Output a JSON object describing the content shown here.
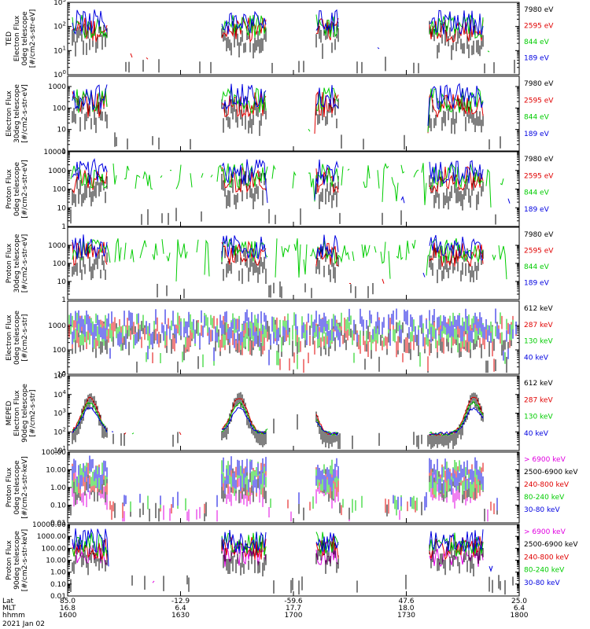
{
  "chart_data": [
    {
      "type": "line",
      "ylabel": [
        "TED",
        "Electron Flux",
        "0deg telescope",
        "[#/cm2-s-str-eV]"
      ],
      "y_scale": "log",
      "ylim": [
        1,
        1000
      ],
      "yticks": [
        "10^0",
        "10^1",
        "10^2",
        "10^3"
      ],
      "legend": [
        {
          "label": "7980 eV",
          "color": "#000000"
        },
        {
          "label": "2595 eV",
          "color": "#e00000"
        },
        {
          "label": "844 eV",
          "color": "#00cc00"
        },
        {
          "label": "189 eV",
          "color": "#0000e0"
        }
      ]
    },
    {
      "type": "line",
      "ylabel": [
        "Electron Flux",
        "30deg telescope",
        "[#/cm2-s-str-eV]"
      ],
      "y_scale": "log",
      "ylim": [
        1,
        3000
      ],
      "yticks": [
        "1",
        "10",
        "100",
        "1000"
      ],
      "legend": [
        {
          "label": "7980 eV",
          "color": "#000000"
        },
        {
          "label": "2595 eV",
          "color": "#e00000"
        },
        {
          "label": "844 eV",
          "color": "#00cc00"
        },
        {
          "label": "189 eV",
          "color": "#0000e0"
        }
      ]
    },
    {
      "type": "line",
      "ylabel": [
        "Proton Flux",
        "0deg telescope",
        "[#/cm2-s-str-eV]"
      ],
      "y_scale": "log",
      "ylim": [
        1,
        10000
      ],
      "yticks": [
        "1",
        "10",
        "100",
        "1000",
        "10000"
      ],
      "legend": [
        {
          "label": "7980 eV",
          "color": "#000000"
        },
        {
          "label": "2595 eV",
          "color": "#e00000"
        },
        {
          "label": "844 eV",
          "color": "#00cc00"
        },
        {
          "label": "189 eV",
          "color": "#0000e0"
        }
      ]
    },
    {
      "type": "line",
      "ylabel": [
        "Proton Flux",
        "30deg telescope",
        "[#/cm2-s-str-eV]"
      ],
      "y_scale": "log",
      "ylim": [
        1,
        10000
      ],
      "yticks": [
        "1",
        "10",
        "100",
        "1000"
      ],
      "legend": [
        {
          "label": "7980 eV",
          "color": "#000000"
        },
        {
          "label": "2595 eV",
          "color": "#e00000"
        },
        {
          "label": "844 eV",
          "color": "#00cc00"
        },
        {
          "label": "189 eV",
          "color": "#0000e0"
        }
      ]
    },
    {
      "type": "line",
      "ylabel": [
        "Electron Flux",
        "0deg telescope",
        "[#/cm2-s-str]"
      ],
      "y_scale": "log",
      "ylim": [
        10,
        10000
      ],
      "yticks": [
        "10",
        "100",
        "1000"
      ],
      "legend": [
        {
          "label": "612 keV",
          "color": "#000000"
        },
        {
          "label": "287 keV",
          "color": "#e00000"
        },
        {
          "label": "130 keV",
          "color": "#00cc00"
        },
        {
          "label": "40 keV",
          "color": "#0000e0"
        }
      ]
    },
    {
      "type": "line",
      "ylabel": [
        "MEPED",
        "Electron Flux",
        "90deg telescope",
        "[#/cm2-s-str]"
      ],
      "y_scale": "log",
      "ylim": [
        10,
        100000
      ],
      "yticks": [
        "10^1",
        "10^2",
        "10^3",
        "10^4",
        "10^5"
      ],
      "legend": [
        {
          "label": "612 keV",
          "color": "#000000"
        },
        {
          "label": "287 keV",
          "color": "#e00000"
        },
        {
          "label": "130 keV",
          "color": "#00cc00"
        },
        {
          "label": "40 keV",
          "color": "#0000e0"
        }
      ]
    },
    {
      "type": "line",
      "ylabel": [
        "Proton Flux",
        "0deg telescope",
        "[#/cm2-s-str-keV]"
      ],
      "y_scale": "log",
      "ylim": [
        0.01,
        100
      ],
      "yticks": [
        "0.01",
        "0.10",
        "1.00",
        "10.00",
        "100.00"
      ],
      "legend": [
        {
          "label": "> 6900 keV",
          "color": "#e000e0"
        },
        {
          "label": "2500-6900 keV",
          "color": "#000000"
        },
        {
          "label": "240-800 keV",
          "color": "#e00000"
        },
        {
          "label": "80-240 keV",
          "color": "#00cc00"
        },
        {
          "label": "30-80 keV",
          "color": "#0000e0"
        }
      ]
    },
    {
      "type": "line",
      "ylabel": [
        "Proton Flux",
        "90deg telescope",
        "[#/cm2-s-str-keV]"
      ],
      "y_scale": "log",
      "ylim": [
        0.01,
        10000
      ],
      "yticks": [
        "0.01",
        "0.10",
        "1.00",
        "10.00",
        "100.00",
        "1000.00",
        "10000.00"
      ],
      "legend": [
        {
          "label": "> 6900 keV",
          "color": "#e000e0"
        },
        {
          "label": "2500-6900 keV",
          "color": "#000000"
        },
        {
          "label": "240-800 keV",
          "color": "#e00000"
        },
        {
          "label": "80-240 keV",
          "color": "#00cc00"
        },
        {
          "label": "30-80 keV",
          "color": "#0000e0"
        }
      ]
    }
  ],
  "x_axis": {
    "rows": [
      {
        "label": "Lat",
        "values": [
          "85.0",
          "-12.9",
          "-59.6",
          "47.6",
          "25.0"
        ]
      },
      {
        "label": "MLT",
        "values": [
          "16.8",
          "6.4",
          "17.7",
          "18.0",
          "6.4"
        ]
      },
      {
        "label": "hhmm",
        "values": [
          "1600",
          "1630",
          "1700",
          "1730",
          "1800"
        ]
      }
    ],
    "date": "2021 Jan 02"
  }
}
